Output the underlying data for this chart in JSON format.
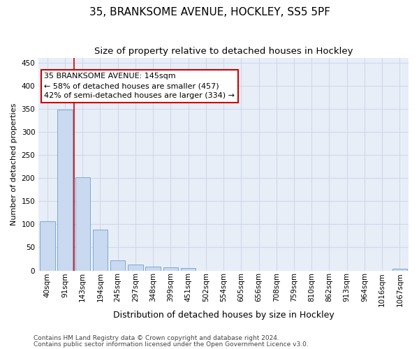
{
  "title1": "35, BRANKSOME AVENUE, HOCKLEY, SS5 5PF",
  "title2": "Size of property relative to detached houses in Hockley",
  "xlabel": "Distribution of detached houses by size in Hockley",
  "ylabel": "Number of detached properties",
  "categories": [
    "40sqm",
    "91sqm",
    "143sqm",
    "194sqm",
    "245sqm",
    "297sqm",
    "348sqm",
    "399sqm",
    "451sqm",
    "502sqm",
    "554sqm",
    "605sqm",
    "656sqm",
    "708sqm",
    "759sqm",
    "810sqm",
    "862sqm",
    "913sqm",
    "964sqm",
    "1016sqm",
    "1067sqm"
  ],
  "values": [
    107,
    349,
    202,
    88,
    22,
    13,
    8,
    7,
    5,
    0,
    0,
    0,
    0,
    0,
    0,
    0,
    0,
    0,
    0,
    0,
    4
  ],
  "bar_color": "#c9d9f0",
  "bar_edge_color": "#7aaad4",
  "grid_color": "#d0d8e8",
  "bg_color": "#e8eef8",
  "annotation_line1": "35 BRANKSOME AVENUE: 145sqm",
  "annotation_line2": "← 58% of detached houses are smaller (457)",
  "annotation_line3": "42% of semi-detached houses are larger (334) →",
  "annotation_box_color": "#ffffff",
  "annotation_box_edge": "#cc0000",
  "vline_color": "#cc0000",
  "footer1": "Contains HM Land Registry data © Crown copyright and database right 2024.",
  "footer2": "Contains public sector information licensed under the Open Government Licence v3.0.",
  "ylim": [
    0,
    460
  ],
  "title1_fontsize": 11,
  "title2_fontsize": 9.5,
  "xlabel_fontsize": 9,
  "ylabel_fontsize": 8,
  "tick_fontsize": 7.5,
  "annotation_fontsize": 8,
  "footer_fontsize": 6.5
}
